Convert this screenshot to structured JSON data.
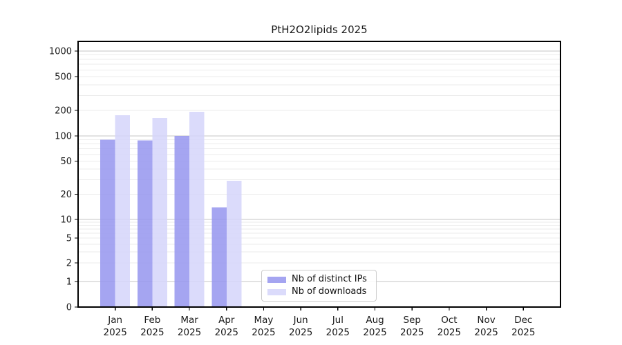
{
  "page": {
    "background": "#ffffff"
  },
  "chart_data": {
    "type": "bar",
    "title": "PtH2O2lipids 2025",
    "categories": [
      "Jan",
      "Feb",
      "Mar",
      "Apr",
      "May",
      "Jun",
      "Jul",
      "Aug",
      "Sep",
      "Oct",
      "Nov",
      "Dec"
    ],
    "x_tick_sub_label": "2025",
    "series": [
      {
        "name": "Nb of distinct IPs",
        "color": "#9595ef",
        "values": [
          90,
          88,
          100,
          14,
          0,
          0,
          0,
          0,
          0,
          0,
          0,
          0
        ]
      },
      {
        "name": "Nb of downloads",
        "color": "#d5d5fa",
        "values": [
          175,
          163,
          193,
          29,
          0,
          0,
          0,
          0,
          0,
          0,
          0,
          0
        ]
      }
    ],
    "y_ticks": [
      0,
      1,
      2,
      5,
      10,
      20,
      50,
      100,
      200,
      500,
      1000
    ],
    "y_scale": "symlog",
    "ylim": [
      0,
      1300
    ],
    "grid": true,
    "legend_position": "lower-center-inside",
    "axis_color": "#000000",
    "major_grid_color": "#c6c6c6",
    "minor_grid_color": "#ebebeb",
    "tick_label_color": "#1a1a1a"
  }
}
